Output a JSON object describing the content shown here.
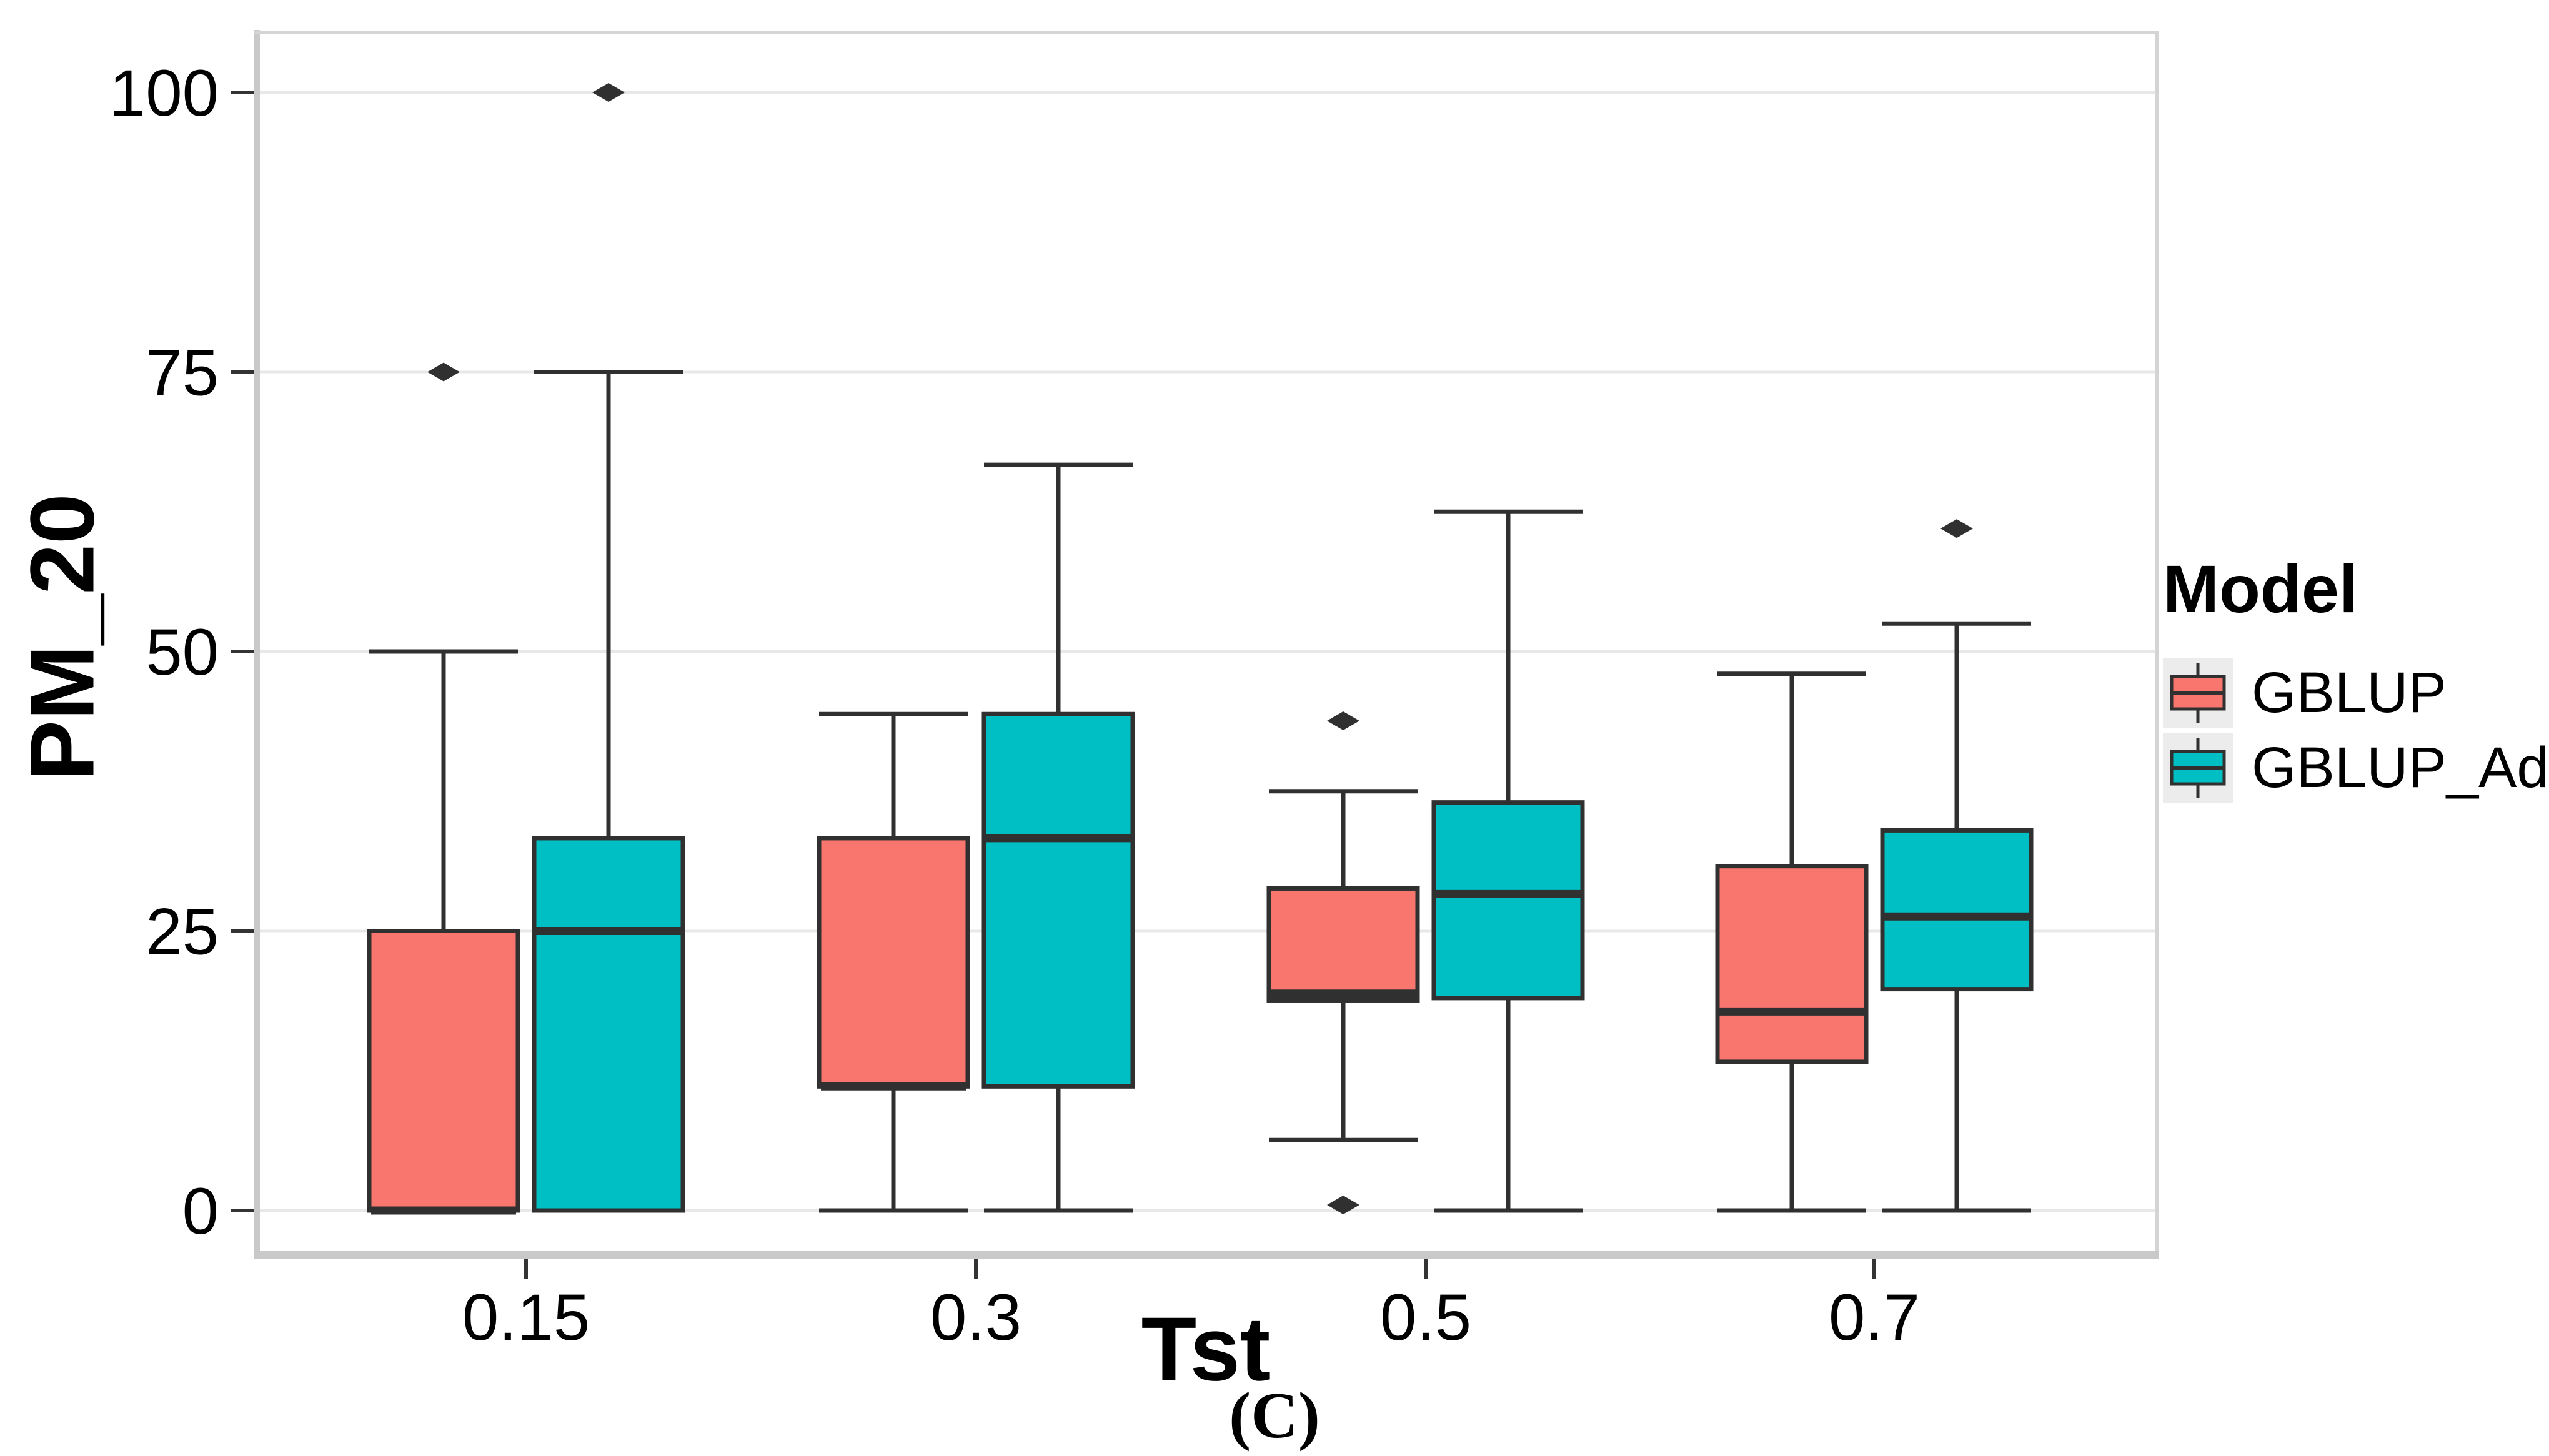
{
  "figure": {
    "caption": "(C)"
  },
  "chart_data": {
    "type": "boxplot",
    "title": "",
    "xlabel": "Tst",
    "ylabel": "PM_20",
    "categories": [
      "0.15",
      "0.3",
      "0.5",
      "0.7"
    ],
    "y_ticks": [
      0,
      25,
      50,
      75,
      100
    ],
    "ylim": [
      -4,
      106
    ],
    "grid": "major-horizontal-only",
    "panel_background": "#ffffff",
    "gridline_color": "#e8e8e8",
    "axis_line_color": "#c9c9c9",
    "box_outline_color": "#303030",
    "outlier_shape": "diamond",
    "legend": {
      "title": "Model",
      "position": "right",
      "entries": [
        {
          "label": "GBLUP",
          "color": "#F8766D"
        },
        {
          "label": "GBLUP_Ad",
          "color": "#00BFC4"
        }
      ]
    },
    "series": [
      {
        "name": "GBLUP",
        "color": "#F8766D",
        "boxes": [
          {
            "category": "0.15",
            "low": 0,
            "q1": 0,
            "median": 0,
            "q3": 25,
            "high": 50,
            "outliers": [
              75
            ]
          },
          {
            "category": "0.3",
            "low": 0,
            "q1": 11.1,
            "median": 11.1,
            "q3": 33.3,
            "high": 44.4,
            "outliers": []
          },
          {
            "category": "0.5",
            "low": 6.3,
            "q1": 18.8,
            "median": 19.4,
            "q3": 28.8,
            "high": 37.5,
            "outliers": [
              43.8,
              0.5
            ]
          },
          {
            "category": "0.7",
            "low": 0,
            "q1": 13.3,
            "median": 17.8,
            "q3": 30.8,
            "high": 48,
            "outliers": []
          }
        ]
      },
      {
        "name": "GBLUP_Ad",
        "color": "#00BFC4",
        "boxes": [
          {
            "category": "0.15",
            "low": 0,
            "q1": 0,
            "median": 25,
            "q3": 33.3,
            "high": 75,
            "outliers": [
              100
            ]
          },
          {
            "category": "0.3",
            "low": 0,
            "q1": 11.1,
            "median": 33.3,
            "q3": 44.4,
            "high": 66.7,
            "outliers": []
          },
          {
            "category": "0.5",
            "low": 0,
            "q1": 19,
            "median": 28.3,
            "q3": 36.5,
            "high": 62.5,
            "outliers": []
          },
          {
            "category": "0.7",
            "low": 0,
            "q1": 19.8,
            "median": 26.3,
            "q3": 34,
            "high": 52.5,
            "outliers": [
              61
            ]
          }
        ]
      }
    ]
  }
}
